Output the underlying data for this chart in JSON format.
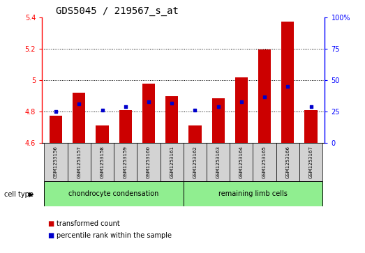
{
  "title": "GDS5045 / 219567_s_at",
  "samples": [
    "GSM1253156",
    "GSM1253157",
    "GSM1253158",
    "GSM1253159",
    "GSM1253160",
    "GSM1253161",
    "GSM1253162",
    "GSM1253163",
    "GSM1253164",
    "GSM1253165",
    "GSM1253166",
    "GSM1253167"
  ],
  "transformed_count": [
    4.775,
    4.92,
    4.71,
    4.81,
    4.98,
    4.9,
    4.71,
    4.885,
    5.02,
    5.195,
    5.375,
    4.81
  ],
  "percentile_rank": [
    25,
    31,
    26,
    29,
    33,
    32,
    26,
    29,
    33,
    37,
    45,
    29
  ],
  "ylim_left": [
    4.6,
    5.4
  ],
  "ylim_right": [
    0,
    100
  ],
  "yticks_left": [
    4.6,
    4.8,
    5.0,
    5.2,
    5.4
  ],
  "ytick_labels_left": [
    "4.6",
    "4.8",
    "5",
    "5.2",
    "5.4"
  ],
  "yticks_right": [
    0,
    25,
    50,
    75,
    100
  ],
  "ytick_labels_right": [
    "0",
    "25",
    "50",
    "75",
    "100%"
  ],
  "bar_color": "#cc0000",
  "dot_color": "#0000cc",
  "bar_bottom": 4.6,
  "bar_width": 0.55,
  "cell_type_label": "cell type",
  "legend_items": [
    {
      "label": "transformed count",
      "color": "#cc0000"
    },
    {
      "label": "percentile rank within the sample",
      "color": "#0000cc"
    }
  ],
  "panel_color": "#d3d3d3",
  "green_color": "#90ee90",
  "dotted_lines": [
    4.8,
    5.0,
    5.2
  ],
  "title_fontsize": 10,
  "tick_fontsize": 7,
  "sample_fontsize": 5,
  "celltype_fontsize": 7,
  "legend_fontsize": 7
}
